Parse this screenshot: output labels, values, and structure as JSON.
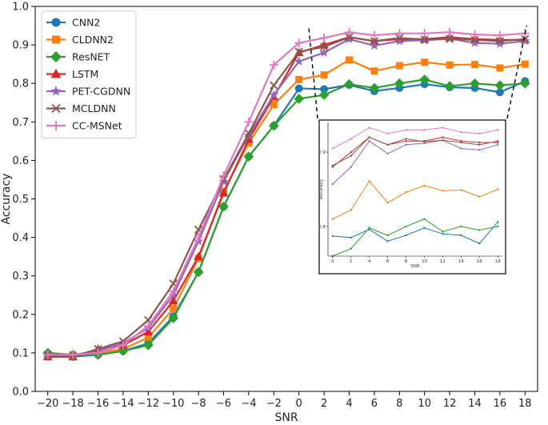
{
  "chart_data": {
    "type": "line",
    "xlabel": "SNR",
    "ylabel": "Accuracy",
    "xlim": [
      -21,
      19
    ],
    "ylim": [
      0,
      1.0
    ],
    "x": [
      -20,
      -18,
      -16,
      -14,
      -12,
      -10,
      -8,
      -6,
      -4,
      -2,
      0,
      2,
      4,
      6,
      8,
      10,
      12,
      14,
      16,
      18
    ],
    "x_ticks": [
      -20,
      -18,
      -16,
      -14,
      -12,
      -10,
      -8,
      -6,
      -4,
      -2,
      0,
      2,
      4,
      6,
      8,
      10,
      12,
      14,
      16,
      18
    ],
    "y_ticks": [
      0.0,
      0.1,
      0.2,
      0.3,
      0.4,
      0.5,
      0.6,
      0.7,
      0.8,
      0.9,
      1.0
    ],
    "legend_position": "top-left",
    "series": [
      {
        "name": "CNN2",
        "color": "#1f77b4",
        "marker": "circle",
        "values": [
          0.09,
          0.09,
          0.095,
          0.105,
          0.125,
          0.195,
          0.31,
          0.48,
          0.61,
          0.69,
          0.787,
          0.785,
          0.796,
          0.78,
          0.788,
          0.798,
          0.79,
          0.788,
          0.777,
          0.806
        ]
      },
      {
        "name": "CLDNN2",
        "color": "#ff7f0e",
        "marker": "square",
        "values": [
          0.095,
          0.095,
          0.1,
          0.11,
          0.14,
          0.215,
          0.345,
          0.52,
          0.645,
          0.745,
          0.81,
          0.822,
          0.861,
          0.832,
          0.846,
          0.855,
          0.848,
          0.849,
          0.84,
          0.85
        ]
      },
      {
        "name": "ResNET",
        "color": "#2ca02c",
        "marker": "diamond",
        "values": [
          0.1,
          0.095,
          0.095,
          0.105,
          0.12,
          0.19,
          0.31,
          0.48,
          0.61,
          0.69,
          0.76,
          0.77,
          0.798,
          0.788,
          0.8,
          0.81,
          0.793,
          0.8,
          0.795,
          0.8
        ]
      },
      {
        "name": "LSTM",
        "color": "#d62728",
        "marker": "triangle-up",
        "values": [
          0.09,
          0.09,
          0.11,
          0.12,
          0.155,
          0.235,
          0.35,
          0.515,
          0.655,
          0.765,
          0.88,
          0.9,
          0.92,
          0.91,
          0.915,
          0.915,
          0.92,
          0.915,
          0.913,
          0.913
        ]
      },
      {
        "name": "PET-CGDNN",
        "color": "#9467bd",
        "marker": "star",
        "values": [
          0.095,
          0.095,
          0.105,
          0.125,
          0.165,
          0.25,
          0.39,
          0.545,
          0.665,
          0.77,
          0.857,
          0.88,
          0.915,
          0.898,
          0.91,
          0.912,
          0.916,
          0.905,
          0.903,
          0.91
        ]
      },
      {
        "name": "MCLDNN",
        "color": "#8c564b",
        "marker": "x",
        "values": [
          0.095,
          0.09,
          0.11,
          0.13,
          0.185,
          0.28,
          0.42,
          0.55,
          0.67,
          0.795,
          0.882,
          0.895,
          0.92,
          0.91,
          0.918,
          0.914,
          0.916,
          0.913,
          0.91,
          0.915
        ]
      },
      {
        "name": "CC-MSNet",
        "color": "#e377c2",
        "marker": "plus",
        "values": [
          0.095,
          0.095,
          0.1,
          0.12,
          0.17,
          0.26,
          0.4,
          0.56,
          0.7,
          0.848,
          0.905,
          0.918,
          0.933,
          0.925,
          0.93,
          0.93,
          0.933,
          0.927,
          0.925,
          0.93
        ]
      }
    ],
    "inset": {
      "xlabel": "SNR",
      "ylabel": "Accuracy",
      "xlim": [
        -0.5,
        18.5
      ],
      "ylim": [
        0.76,
        0.94
      ],
      "x_ticks": [
        0,
        2,
        4,
        6,
        8,
        10,
        12,
        14,
        16,
        18
      ],
      "y_ticks": [
        0.8,
        0.9
      ]
    }
  }
}
